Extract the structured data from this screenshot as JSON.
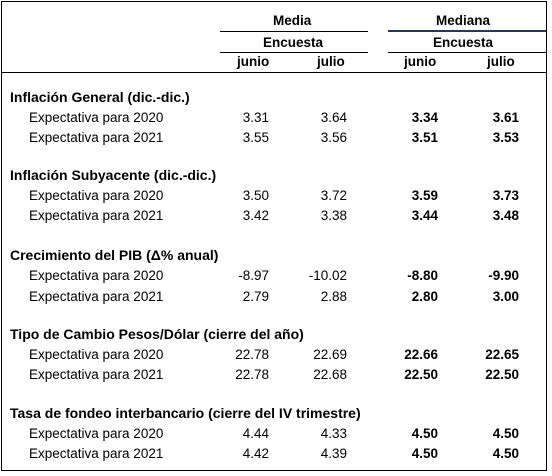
{
  "headers": {
    "media": "Media",
    "mediana": "Mediana",
    "encuesta": "Encuesta",
    "junio": "junio",
    "julio": "julio"
  },
  "sections": [
    {
      "title": "Inflación General (dic.-dic.)",
      "rows": [
        {
          "label": "Expectativa para 2020",
          "media_junio": "3.31",
          "media_julio": "3.64",
          "mediana_junio": "3.34",
          "mediana_julio": "3.61"
        },
        {
          "label": "Expectativa para 2021",
          "media_junio": "3.55",
          "media_julio": "3.56",
          "mediana_junio": "3.51",
          "mediana_julio": "3.53"
        }
      ]
    },
    {
      "title": "Inflación Subyacente (dic.-dic.)",
      "rows": [
        {
          "label": "Expectativa para 2020",
          "media_junio": "3.50",
          "media_julio": "3.72",
          "mediana_junio": "3.59",
          "mediana_julio": "3.73"
        },
        {
          "label": "Expectativa para 2021",
          "media_junio": "3.42",
          "media_julio": "3.38",
          "mediana_junio": "3.44",
          "mediana_julio": "3.48"
        }
      ]
    },
    {
      "title": "Crecimiento del PIB (Δ% anual)",
      "rows": [
        {
          "label": "Expectativa para 2020",
          "media_junio": "-8.97",
          "media_julio": "-10.02",
          "mediana_junio": "-8.80",
          "mediana_julio": "-9.90"
        },
        {
          "label": "Expectativa para 2021",
          "media_junio": "2.79",
          "media_julio": "2.88",
          "mediana_junio": "2.80",
          "mediana_julio": "3.00"
        }
      ]
    },
    {
      "title": "Tipo de Cambio Pesos/Dólar (cierre del año)",
      "rows": [
        {
          "label": "Expectativa para 2020",
          "media_junio": "22.78",
          "media_julio": "22.69",
          "mediana_junio": "22.66",
          "mediana_julio": "22.65"
        },
        {
          "label": "Expectativa para 2021",
          "media_junio": "22.78",
          "media_julio": "22.68",
          "mediana_junio": "22.50",
          "mediana_julio": "22.50"
        }
      ]
    },
    {
      "title": "Tasa de fondeo interbancario (cierre del IV trimestre)",
      "rows": [
        {
          "label": "Expectativa para 2020",
          "media_junio": "4.44",
          "media_julio": "4.33",
          "mediana_junio": "4.50",
          "mediana_julio": "4.50"
        },
        {
          "label": "Expectativa para 2021",
          "media_junio": "4.42",
          "media_julio": "4.39",
          "mediana_junio": "4.50",
          "mediana_julio": "4.50"
        }
      ]
    }
  ]
}
